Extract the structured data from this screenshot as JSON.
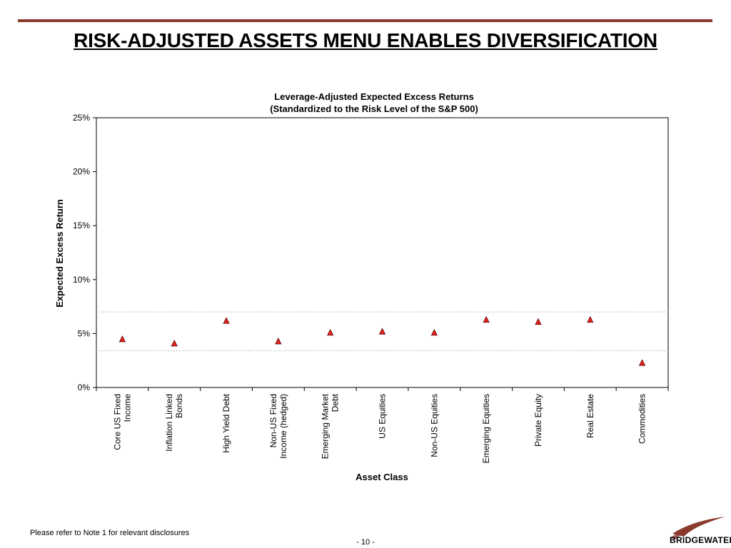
{
  "page": {
    "title": "RISK-ADJUSTED ASSETS MENU ENABLES DIVERSIFICATION",
    "footer_note": "Please refer to Note 1 for relevant disclosures",
    "page_number": "- 10 -",
    "logo_text": "BRIDGEWATER"
  },
  "colors": {
    "rule": "#8b3a2e",
    "marker_fill": "#e8231e",
    "marker_stroke": "#5a0000",
    "band_line": "#bbbbbb",
    "logo_swoosh": "#8b3a2e"
  },
  "chart_data": {
    "type": "scatter",
    "title_line1": "Leverage-Adjusted Expected Excess Returns",
    "title_line2": "(Standardized to the Risk Level of the S&P 500)",
    "xlabel": "Asset Class",
    "ylabel": "Expected Excess Return",
    "ylim": [
      0,
      0.25
    ],
    "yticks": [
      "0%",
      "5%",
      "10%",
      "15%",
      "20%",
      "25%"
    ],
    "marker": "triangle",
    "grid": false,
    "reference_lines": [
      0.034,
      0.07
    ],
    "categories": [
      [
        "Core US Fixed",
        "Income"
      ],
      [
        "Inflation Linked",
        "Bonds"
      ],
      [
        "High Yield Debt"
      ],
      [
        "Non-US Fixed",
        "Income (hedged)"
      ],
      [
        "Emerging Market",
        "Debt"
      ],
      [
        "US Equities"
      ],
      [
        "Non-US Equities"
      ],
      [
        "Emerging Equities"
      ],
      [
        "Private Equity"
      ],
      [
        "Real Estate"
      ],
      [
        "Commodities"
      ]
    ],
    "values": [
      0.045,
      0.041,
      0.062,
      0.043,
      0.051,
      0.052,
      0.051,
      0.063,
      0.061,
      0.063,
      0.023
    ]
  }
}
